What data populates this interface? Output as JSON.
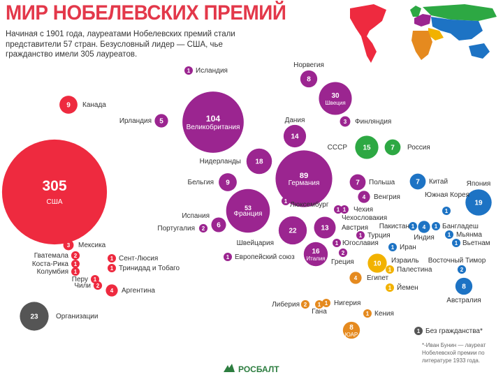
{
  "header": {
    "title": "МИР НОБЕЛЕВСКИХ ПРЕМИЙ",
    "subtitle": "Начиная с 1901 года, лауреатами Нобелевских премий стали представители 57 стран. Безусловный лидер — США, чье гражданство имели 305 лауреатов."
  },
  "colors": {
    "americas": "#ee2a3f",
    "europe": "#9b2590",
    "northern_europe": "#2da843",
    "asia": "#1d73c4",
    "middle_east": "#f2b200",
    "africa": "#e58a1f",
    "other": "#555555"
  },
  "map": {
    "regions": [
      "americas",
      "europe",
      "northern_europe",
      "asia",
      "middle_east",
      "africa",
      "australia"
    ]
  },
  "chart_data": {
    "type": "bubble",
    "title": "МИР НОБЕЛЕВСКИХ ПРЕМИЙ",
    "series": [
      {
        "region": "americas",
        "points": [
          {
            "label": "США",
            "value": 305
          },
          {
            "label": "Канада",
            "value": 9
          },
          {
            "label": "Мексика",
            "value": 3
          },
          {
            "label": "Гватемала",
            "value": 2
          },
          {
            "label": "Коста-Рика",
            "value": 1
          },
          {
            "label": "Колумбия",
            "value": 1
          },
          {
            "label": "Перу",
            "value": 1
          },
          {
            "label": "Чили",
            "value": 2
          },
          {
            "label": "Аргентина",
            "value": 4
          },
          {
            "label": "Сент-Люсия",
            "value": 1
          },
          {
            "label": "Тринидад и Тобаго",
            "value": 1
          }
        ]
      },
      {
        "region": "europe",
        "points": [
          {
            "label": "Исландия",
            "value": 1
          },
          {
            "label": "Великобритания",
            "value": 104
          },
          {
            "label": "Ирландия",
            "value": 5
          },
          {
            "label": "Норвегия",
            "value": 8
          },
          {
            "label": "Швеция",
            "value": 30
          },
          {
            "label": "Финляндия",
            "value": 3
          },
          {
            "label": "Дания",
            "value": 14
          },
          {
            "label": "Нидерланды",
            "value": 18
          },
          {
            "label": "Германия",
            "value": 89
          },
          {
            "label": "Бельгия",
            "value": 9
          },
          {
            "label": "Франция",
            "value": 53
          },
          {
            "label": "Люксембург",
            "value": 1
          },
          {
            "label": "Польша",
            "value": 7
          },
          {
            "label": "Венгрия",
            "value": 4
          },
          {
            "label": "Испания",
            "value": 6
          },
          {
            "label": "Португалия",
            "value": 2
          },
          {
            "label": "Чехия",
            "value": 1
          },
          {
            "label": "Чехословакия",
            "value": 1
          },
          {
            "label": "Швейцария",
            "value": 22
          },
          {
            "label": "Австрия",
            "value": 13
          },
          {
            "label": "Турция",
            "value": 1
          },
          {
            "label": "Югославия",
            "value": 1
          },
          {
            "label": "Италия",
            "value": 16
          },
          {
            "label": "Греция",
            "value": 2
          },
          {
            "label": "Европейский союз",
            "value": 1
          }
        ]
      },
      {
        "region": "northern_europe",
        "points": [
          {
            "label": "СССР",
            "value": 15
          },
          {
            "label": "Россия",
            "value": 7
          }
        ]
      },
      {
        "region": "asia",
        "points": [
          {
            "label": "Китай",
            "value": 7
          },
          {
            "label": "Япония",
            "value": 19
          },
          {
            "label": "Южная Корея",
            "value": 1
          },
          {
            "label": "Пакистан",
            "value": 1
          },
          {
            "label": "Индия",
            "value": 4
          },
          {
            "label": "Бангладеш",
            "value": 1
          },
          {
            "label": "Мьянма",
            "value": 1
          },
          {
            "label": "Вьетнам",
            "value": 1
          },
          {
            "label": "Иран",
            "value": 1
          },
          {
            "label": "Восточный Тимор",
            "value": 2
          },
          {
            "label": "Австралия",
            "value": 8
          }
        ]
      },
      {
        "region": "middle_east",
        "points": [
          {
            "label": "Израиль",
            "value": 10
          },
          {
            "label": "Палестина",
            "value": 1
          },
          {
            "label": "Йемен",
            "value": 1
          }
        ]
      },
      {
        "region": "africa",
        "points": [
          {
            "label": "Египет",
            "value": 4
          },
          {
            "label": "Либерия",
            "value": 2
          },
          {
            "label": "Гана",
            "value": 1
          },
          {
            "label": "Нигерия",
            "value": 1
          },
          {
            "label": "Кения",
            "value": 1
          },
          {
            "label": "ЮАР",
            "value": 8
          }
        ]
      },
      {
        "region": "other",
        "points": [
          {
            "label": "Организации",
            "value": 23
          },
          {
            "label": "Без гражданства*",
            "value": 1
          }
        ]
      }
    ]
  },
  "footnote": "*-Иван Бунин — лауреат Нобелевской премии по литературе 1933 года.",
  "logo": {
    "text": "РОСБАЛТ",
    "icon": "rosbalt-logo-icon"
  }
}
